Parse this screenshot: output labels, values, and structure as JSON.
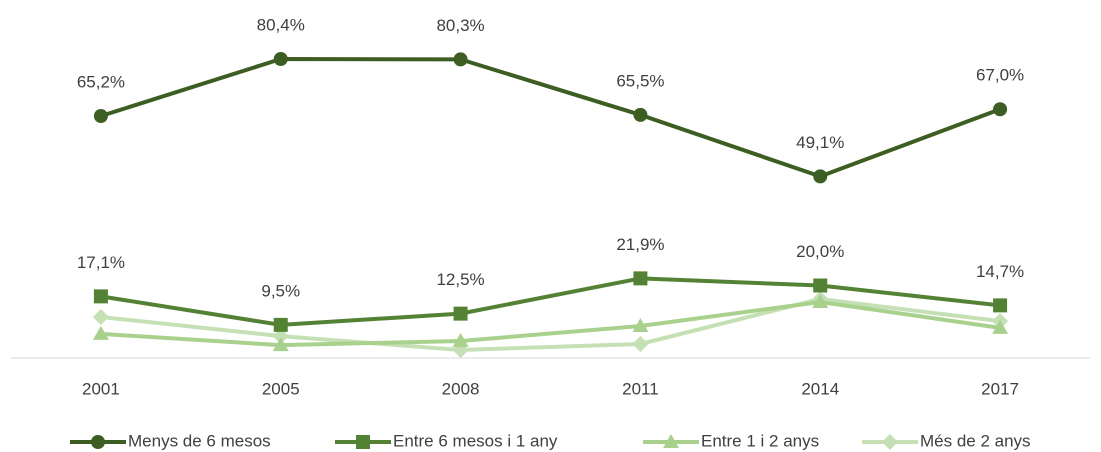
{
  "chart_data": {
    "type": "line",
    "categories": [
      "2001",
      "2005",
      "2008",
      "2011",
      "2014",
      "2017"
    ],
    "ylim": [
      0,
      85
    ],
    "legend": "bottom",
    "series": [
      {
        "name": "Menys de 6 mesos",
        "color": "#3d5e23",
        "marker": "circle",
        "values": [
          65.2,
          80.4,
          80.3,
          65.5,
          49.1,
          67.0
        ],
        "value_labels": [
          "65,2%",
          "80,4%",
          "80,3%",
          "65,5%",
          "49,1%",
          "67,0%"
        ]
      },
      {
        "name": "Entre 6 mesos i 1 any",
        "color": "#548235",
        "marker": "square",
        "values": [
          17.1,
          9.5,
          12.5,
          21.9,
          20.0,
          14.7
        ],
        "value_labels": [
          "17,1%",
          "9,5%",
          "12,5%",
          "21,9%",
          "20,0%",
          "14,7%"
        ]
      },
      {
        "name": "Entre 1 i 2 anys",
        "color": "#a9d18e",
        "marker": "triangle",
        "values": [
          7.1,
          4.1,
          5.2,
          9.2,
          15.6,
          8.7
        ]
      },
      {
        "name": "Més de 2 anys",
        "color": "#c5e0b4",
        "marker": "diamond",
        "values": [
          11.6,
          6.5,
          2.8,
          4.4,
          16.4,
          10.5
        ]
      }
    ]
  }
}
